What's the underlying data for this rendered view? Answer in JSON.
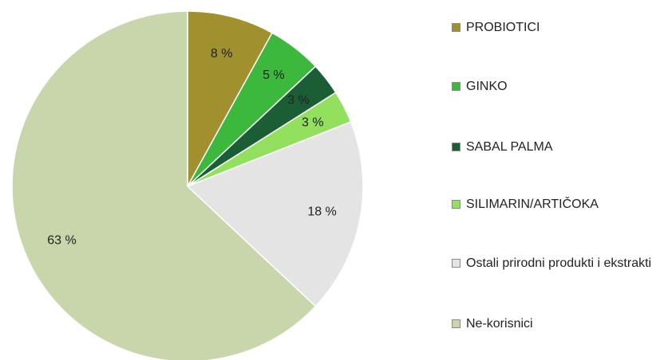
{
  "chart_data": {
    "type": "pie",
    "categories": [
      "PROBIOTICI",
      "GINKO",
      "SABAL PALMA",
      "SILIMARIN/ARTIČOKA",
      "Ostali prirodni produkti i ekstrakti",
      "Ne-korisnici"
    ],
    "values": [
      8,
      5,
      3,
      3,
      18,
      63
    ],
    "value_labels": [
      "8 %",
      "5 %",
      "3 %",
      "3 %",
      "18 %",
      "63 %"
    ],
    "colors": [
      "#a0902e",
      "#3cb83c",
      "#1b5e36",
      "#93e05e",
      "#e4e4e4",
      "#c9d5ab"
    ]
  }
}
